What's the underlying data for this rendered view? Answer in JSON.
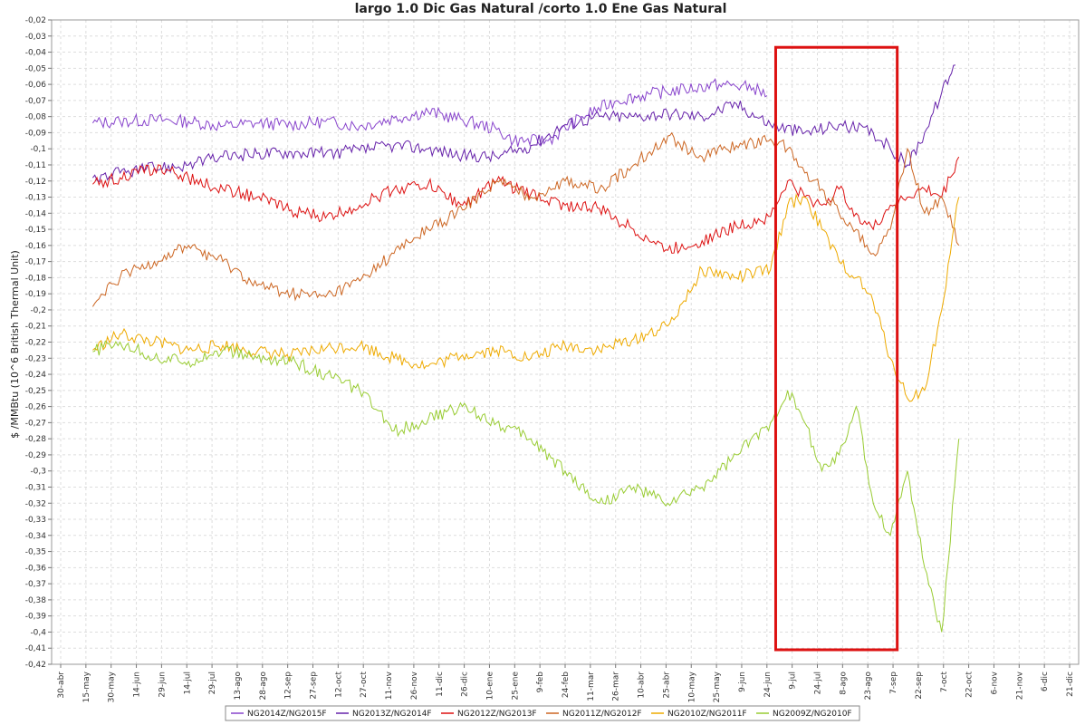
{
  "chart_data": {
    "type": "line",
    "title": "largo 1.0 Dic Gas Natural  /corto 1.0 Ene Gas Natural",
    "ylabel": "$ /MMBtu (10^6 British Thermal Unit)",
    "xlabel": "",
    "ylim": [
      -0.42,
      -0.02
    ],
    "y_ticks": [
      "-0,02",
      "-0,03",
      "-0,04",
      "-0,05",
      "-0,06",
      "-0,07",
      "-0,08",
      "-0,09",
      "-0,1",
      "-0,11",
      "-0,12",
      "-0,13",
      "-0,14",
      "-0,15",
      "-0,16",
      "-0,17",
      "-0,18",
      "-0,19",
      "-0,2",
      "-0,21",
      "-0,22",
      "-0,23",
      "-0,24",
      "-0,25",
      "-0,26",
      "-0,27",
      "-0,28",
      "-0,29",
      "-0,3",
      "-0,31",
      "-0,32",
      "-0,33",
      "-0,34",
      "-0,35",
      "-0,36",
      "-0,37",
      "-0,38",
      "-0,39",
      "-0,4",
      "-0,41",
      "-0,42"
    ],
    "x_ticks": [
      "30-abr",
      "15-may",
      "30-may",
      "14-jun",
      "29-jun",
      "14-jul",
      "29-jul",
      "13-ago",
      "28-ago",
      "12-sep",
      "27-sep",
      "12-oct",
      "27-oct",
      "11-nov",
      "26-nov",
      "11-dic",
      "26-dic",
      "10-ene",
      "25-ene",
      "9-feb",
      "24-feb",
      "11-mar",
      "26-mar",
      "10-abr",
      "25-abr",
      "10-may",
      "25-may",
      "9-jun",
      "24-jun",
      "9-jul",
      "24-jul",
      "8-ago",
      "23-ago",
      "7-sep",
      "22-sep",
      "7-oct",
      "22-oct",
      "6-nov",
      "21-nov",
      "6-dic",
      "21-dic"
    ],
    "x_domain": [
      0,
      600
    ],
    "grid": true,
    "legend_position": "bottom",
    "annotation": {
      "type": "rectangle",
      "color": "#dd1111",
      "x_range": [
        423,
        494
      ],
      "y_range": [
        -0.411,
        -0.037
      ]
    },
    "series": [
      {
        "name": "NG2014Z/NG2015F",
        "color": "#8844cc",
        "x": [
          24,
          40,
          60,
          80,
          100,
          120,
          140,
          160,
          180,
          200,
          220,
          240,
          260,
          270,
          290,
          310,
          330,
          350,
          370,
          390,
          410,
          418
        ],
        "values": [
          -0.084,
          -0.083,
          -0.082,
          -0.083,
          -0.086,
          -0.084,
          -0.085,
          -0.083,
          -0.086,
          -0.081,
          -0.077,
          -0.082,
          -0.088,
          -0.095,
          -0.095,
          -0.08,
          -0.07,
          -0.066,
          -0.063,
          -0.06,
          -0.062,
          -0.067
        ]
      },
      {
        "name": "NG2013Z/NG2014F",
        "color": "#6622aa",
        "x": [
          24,
          40,
          60,
          80,
          100,
          120,
          140,
          160,
          180,
          200,
          220,
          240,
          260,
          280,
          300,
          320,
          340,
          360,
          380,
          400,
          420,
          440,
          460,
          480,
          490,
          500,
          510,
          520,
          528
        ],
        "values": [
          -0.118,
          -0.115,
          -0.112,
          -0.11,
          -0.105,
          -0.103,
          -0.102,
          -0.103,
          -0.101,
          -0.098,
          -0.1,
          -0.104,
          -0.105,
          -0.098,
          -0.085,
          -0.08,
          -0.08,
          -0.078,
          -0.08,
          -0.072,
          -0.085,
          -0.09,
          -0.085,
          -0.09,
          -0.1,
          -0.11,
          -0.09,
          -0.065,
          -0.048
        ]
      },
      {
        "name": "NG2012Z/NG2013F",
        "color": "#dd1111",
        "x": [
          24,
          40,
          60,
          80,
          100,
          120,
          140,
          160,
          180,
          200,
          220,
          240,
          260,
          280,
          300,
          320,
          340,
          360,
          380,
          400,
          420,
          430,
          440,
          450,
          460,
          470,
          480,
          490,
          500,
          510,
          520,
          530
        ],
        "values": [
          -0.122,
          -0.118,
          -0.112,
          -0.118,
          -0.125,
          -0.13,
          -0.138,
          -0.143,
          -0.135,
          -0.125,
          -0.122,
          -0.135,
          -0.12,
          -0.128,
          -0.135,
          -0.137,
          -0.15,
          -0.163,
          -0.157,
          -0.148,
          -0.142,
          -0.12,
          -0.13,
          -0.135,
          -0.125,
          -0.14,
          -0.15,
          -0.135,
          -0.13,
          -0.125,
          -0.13,
          -0.105
        ]
      },
      {
        "name": "NG2011Z/NG2012F",
        "color": "#cc6622",
        "x": [
          24,
          40,
          60,
          80,
          100,
          120,
          140,
          160,
          180,
          200,
          220,
          240,
          260,
          280,
          300,
          320,
          340,
          360,
          380,
          400,
          420,
          430,
          440,
          450,
          460,
          470,
          480,
          490,
          500,
          510,
          520,
          530
        ],
        "values": [
          -0.198,
          -0.18,
          -0.17,
          -0.16,
          -0.17,
          -0.185,
          -0.19,
          -0.192,
          -0.182,
          -0.165,
          -0.15,
          -0.138,
          -0.12,
          -0.13,
          -0.12,
          -0.125,
          -0.11,
          -0.092,
          -0.105,
          -0.098,
          -0.094,
          -0.1,
          -0.115,
          -0.125,
          -0.14,
          -0.15,
          -0.165,
          -0.15,
          -0.1,
          -0.14,
          -0.13,
          -0.16
        ]
      },
      {
        "name": "NG2010Z/NG2011F",
        "color": "#eeaa00",
        "x": [
          24,
          40,
          60,
          80,
          100,
          120,
          140,
          160,
          180,
          200,
          220,
          240,
          260,
          280,
          300,
          320,
          340,
          360,
          380,
          400,
          420,
          430,
          440,
          450,
          460,
          470,
          480,
          490,
          500,
          510,
          520,
          530
        ],
        "values": [
          -0.225,
          -0.215,
          -0.22,
          -0.225,
          -0.222,
          -0.226,
          -0.228,
          -0.224,
          -0.222,
          -0.23,
          -0.235,
          -0.228,
          -0.225,
          -0.23,
          -0.222,
          -0.225,
          -0.218,
          -0.21,
          -0.175,
          -0.18,
          -0.175,
          -0.135,
          -0.13,
          -0.15,
          -0.17,
          -0.18,
          -0.195,
          -0.23,
          -0.255,
          -0.25,
          -0.2,
          -0.13
        ]
      },
      {
        "name": "NG2009Z/NG2010F",
        "color": "#99cc33",
        "x": [
          24,
          40,
          60,
          80,
          100,
          120,
          140,
          160,
          180,
          200,
          220,
          240,
          260,
          280,
          300,
          320,
          340,
          360,
          380,
          400,
          420,
          430,
          440,
          450,
          460,
          470,
          480,
          490,
          500,
          510,
          520,
          530
        ],
        "values": [
          -0.226,
          -0.22,
          -0.23,
          -0.232,
          -0.225,
          -0.23,
          -0.232,
          -0.24,
          -0.25,
          -0.275,
          -0.268,
          -0.26,
          -0.27,
          -0.28,
          -0.3,
          -0.32,
          -0.31,
          -0.32,
          -0.31,
          -0.29,
          -0.27,
          -0.25,
          -0.27,
          -0.3,
          -0.29,
          -0.26,
          -0.32,
          -0.34,
          -0.3,
          -0.36,
          -0.4,
          -0.28
        ]
      }
    ]
  }
}
